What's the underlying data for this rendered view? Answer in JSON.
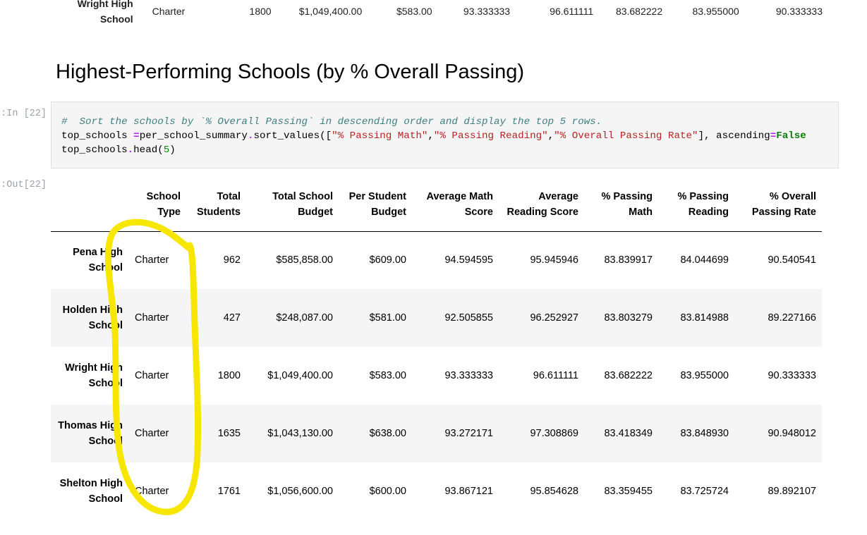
{
  "prev_row": {
    "name_line1": "Wright High",
    "name_line2": "School",
    "type": "Charter",
    "total_students": "1800",
    "budget": "$1,049,400.00",
    "per_student": "$583.00",
    "math": "93.333333",
    "reading": "96.611111",
    "pass_math": "83.682222",
    "pass_reading": "83.955000",
    "overall": "90.333333"
  },
  "heading": "Highest-Performing Schools (by % Overall Passing)",
  "cell": {
    "in_prompt": "In [22]:",
    "out_prompt": "Out[22]:",
    "code_comment": "#  Sort the schools by `% Overall Passing` in descending order and display the top 5 rows.",
    "code_line2_a": "top_schools ",
    "code_line2_eq": "=",
    "code_line2_b": "per_school_summary",
    "code_line2_c": ".",
    "code_line2_d": "sort_values([",
    "code_str1": "\"% Passing Math\"",
    "code_comma1": ",",
    "code_str2": "\"% Passing Reading\"",
    "code_comma2": ",",
    "code_str3": "\"% Overall Passing Rate\"",
    "code_line2_e": "], ascending",
    "code_line2_eq2": "=",
    "code_kw_false": "False",
    "code_line3_a": "top_schools",
    "code_line3_dot": ".",
    "code_line3_b": "head(",
    "code_line3_num": "5",
    "code_line3_c": ")"
  },
  "table": {
    "columns": [
      "School Type",
      "Total Students",
      "Total School Budget",
      "Per Student Budget",
      "Average Math Score",
      "Average Reading Score",
      "% Passing Math",
      "% Passing Reading",
      "% Overall Passing Rate"
    ],
    "rows": [
      {
        "name": "Pena High School",
        "type": "Charter",
        "students": "962",
        "budget": "$585,858.00",
        "per_student": "$609.00",
        "math": "94.594595",
        "reading": "95.945946",
        "pass_math": "83.839917",
        "pass_reading": "84.044699",
        "overall": "90.540541"
      },
      {
        "name": "Holden High School",
        "type": "Charter",
        "students": "427",
        "budget": "$248,087.00",
        "per_student": "$581.00",
        "math": "92.505855",
        "reading": "96.252927",
        "pass_math": "83.803279",
        "pass_reading": "83.814988",
        "overall": "89.227166"
      },
      {
        "name": "Wright High School",
        "type": "Charter",
        "students": "1800",
        "budget": "$1,049,400.00",
        "per_student": "$583.00",
        "math": "93.333333",
        "reading": "96.611111",
        "pass_math": "83.682222",
        "pass_reading": "83.955000",
        "overall": "90.333333"
      },
      {
        "name": "Thomas High School",
        "type": "Charter",
        "students": "1635",
        "budget": "$1,043,130.00",
        "per_student": "$638.00",
        "math": "93.272171",
        "reading": "97.308869",
        "pass_math": "83.418349",
        "pass_reading": "83.848930",
        "overall": "90.948012"
      },
      {
        "name": "Shelton High School",
        "type": "Charter",
        "students": "1761",
        "budget": "$1,056,600.00",
        "per_student": "$600.00",
        "math": "93.867121",
        "reading": "95.854628",
        "pass_math": "83.359455",
        "pass_reading": "83.725724",
        "overall": "89.892107"
      }
    ]
  },
  "colors": {
    "highlight": "#f7e600",
    "comment": "#408080",
    "string": "#ba2121",
    "keyword": "#008000"
  }
}
